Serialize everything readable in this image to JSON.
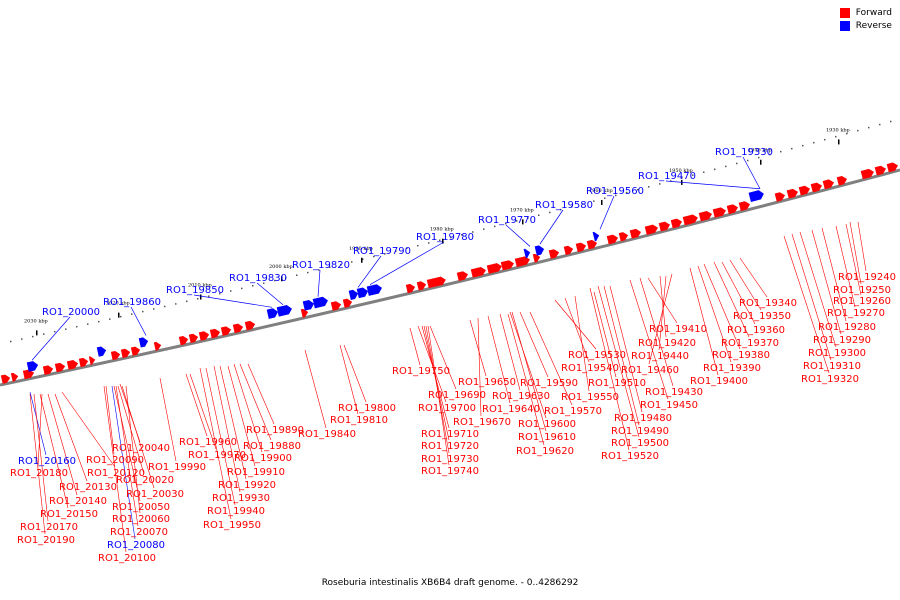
{
  "legend": {
    "forward_label": "Forward",
    "reverse_label": "Reverse",
    "forward_color": "#ff0000",
    "reverse_color": "#0000ff"
  },
  "caption": "Roseburia intestinalis XB6B4 draft genome. - 0..4286292",
  "ticks": [
    "2030 kbp",
    "2020 kbp",
    "2010 kbp",
    "2000 kbp",
    "1990 kbp",
    "1980 kbp",
    "1970 kbp",
    "1960 kbp",
    "1950 kbp",
    "1940 kbp",
    "1930 kbp"
  ],
  "labels_above": [
    "RO1_20000",
    "RO1_19860",
    "RO1_19850",
    "RO1_19830",
    "RO1_19820",
    "RO1_19790",
    "RO1_19780",
    "RO1_19770",
    "RO1_19580",
    "RO1_19560",
    "RO1_19470",
    "RO1_19330"
  ],
  "labels_below": [
    {
      "text": "RO1_20160",
      "strand": "reverse"
    },
    {
      "text": "RO1_20180",
      "strand": "forward"
    },
    {
      "text": "RO1_20120",
      "strand": "forward"
    },
    {
      "text": "RO1_20130",
      "strand": "forward"
    },
    {
      "text": "RO1_20140",
      "strand": "forward"
    },
    {
      "text": "RO1_20150",
      "strand": "forward"
    },
    {
      "text": "RO1_20170",
      "strand": "forward"
    },
    {
      "text": "RO1_20190",
      "strand": "forward"
    },
    {
      "text": "RO1_20040",
      "strand": "forward"
    },
    {
      "text": "RO1_20090",
      "strand": "forward"
    },
    {
      "text": "RO1_20020",
      "strand": "forward"
    },
    {
      "text": "RO1_20030",
      "strand": "forward"
    },
    {
      "text": "RO1_20050",
      "strand": "forward"
    },
    {
      "text": "RO1_20060",
      "strand": "forward"
    },
    {
      "text": "RO1_20070",
      "strand": "forward"
    },
    {
      "text": "RO1_20080",
      "strand": "reverse"
    },
    {
      "text": "RO1_20100",
      "strand": "forward"
    },
    {
      "text": "RO1_19990",
      "strand": "forward"
    },
    {
      "text": "RO1_19960",
      "strand": "forward"
    },
    {
      "text": "RO1_19970",
      "strand": "forward"
    },
    {
      "text": "RO1_19890",
      "strand": "forward"
    },
    {
      "text": "RO1_19880",
      "strand": "forward"
    },
    {
      "text": "RO1_19900",
      "strand": "forward"
    },
    {
      "text": "RO1_19910",
      "strand": "forward"
    },
    {
      "text": "RO1_19920",
      "strand": "forward"
    },
    {
      "text": "RO1_19930",
      "strand": "forward"
    },
    {
      "text": "RO1_19940",
      "strand": "forward"
    },
    {
      "text": "RO1_19950",
      "strand": "forward"
    },
    {
      "text": "RO1_19840",
      "strand": "forward"
    },
    {
      "text": "RO1_19800",
      "strand": "forward"
    },
    {
      "text": "RO1_19810",
      "strand": "forward"
    },
    {
      "text": "RO1_19750",
      "strand": "forward"
    },
    {
      "text": "RO1_19650",
      "strand": "forward"
    },
    {
      "text": "RO1_19690",
      "strand": "forward"
    },
    {
      "text": "RO1_19700",
      "strand": "forward"
    },
    {
      "text": "RO1_19670",
      "strand": "forward"
    },
    {
      "text": "RO1_19710",
      "strand": "forward"
    },
    {
      "text": "RO1_19720",
      "strand": "forward"
    },
    {
      "text": "RO1_19730",
      "strand": "forward"
    },
    {
      "text": "RO1_19740",
      "strand": "forward"
    },
    {
      "text": "RO1_19640",
      "strand": "forward"
    },
    {
      "text": "RO1_19630",
      "strand": "forward"
    },
    {
      "text": "RO1_19590",
      "strand": "forward"
    },
    {
      "text": "RO1_19570",
      "strand": "forward"
    },
    {
      "text": "RO1_19600",
      "strand": "forward"
    },
    {
      "text": "RO1_19610",
      "strand": "forward"
    },
    {
      "text": "RO1_19620",
      "strand": "forward"
    },
    {
      "text": "RO1_19530",
      "strand": "forward"
    },
    {
      "text": "RO1_19540",
      "strand": "forward"
    },
    {
      "text": "RO1_19550",
      "strand": "forward"
    },
    {
      "text": "RO1_19510",
      "strand": "forward"
    },
    {
      "text": "RO1_19410",
      "strand": "forward"
    },
    {
      "text": "RO1_19420",
      "strand": "forward"
    },
    {
      "text": "RO1_19440",
      "strand": "forward"
    },
    {
      "text": "RO1_19460",
      "strand": "forward"
    },
    {
      "text": "RO1_19430",
      "strand": "forward"
    },
    {
      "text": "RO1_19450",
      "strand": "forward"
    },
    {
      "text": "RO1_19480",
      "strand": "forward"
    },
    {
      "text": "RO1_19490",
      "strand": "forward"
    },
    {
      "text": "RO1_19500",
      "strand": "forward"
    },
    {
      "text": "RO1_19520",
      "strand": "forward"
    },
    {
      "text": "RO1_19340",
      "strand": "forward"
    },
    {
      "text": "RO1_19350",
      "strand": "forward"
    },
    {
      "text": "RO1_19360",
      "strand": "forward"
    },
    {
      "text": "RO1_19370",
      "strand": "forward"
    },
    {
      "text": "RO1_19380",
      "strand": "forward"
    },
    {
      "text": "RO1_19390",
      "strand": "forward"
    },
    {
      "text": "RO1_19400",
      "strand": "forward"
    },
    {
      "text": "RO1_19240",
      "strand": "forward"
    },
    {
      "text": "RO1_19250",
      "strand": "forward"
    },
    {
      "text": "RO1_19260",
      "strand": "forward"
    },
    {
      "text": "RO1_19270",
      "strand": "forward"
    },
    {
      "text": "RO1_19280",
      "strand": "forward"
    },
    {
      "text": "RO1_19290",
      "strand": "forward"
    },
    {
      "text": "RO1_19300",
      "strand": "forward"
    },
    {
      "text": "RO1_19310",
      "strand": "forward"
    },
    {
      "text": "RO1_19320",
      "strand": "forward"
    }
  ]
}
